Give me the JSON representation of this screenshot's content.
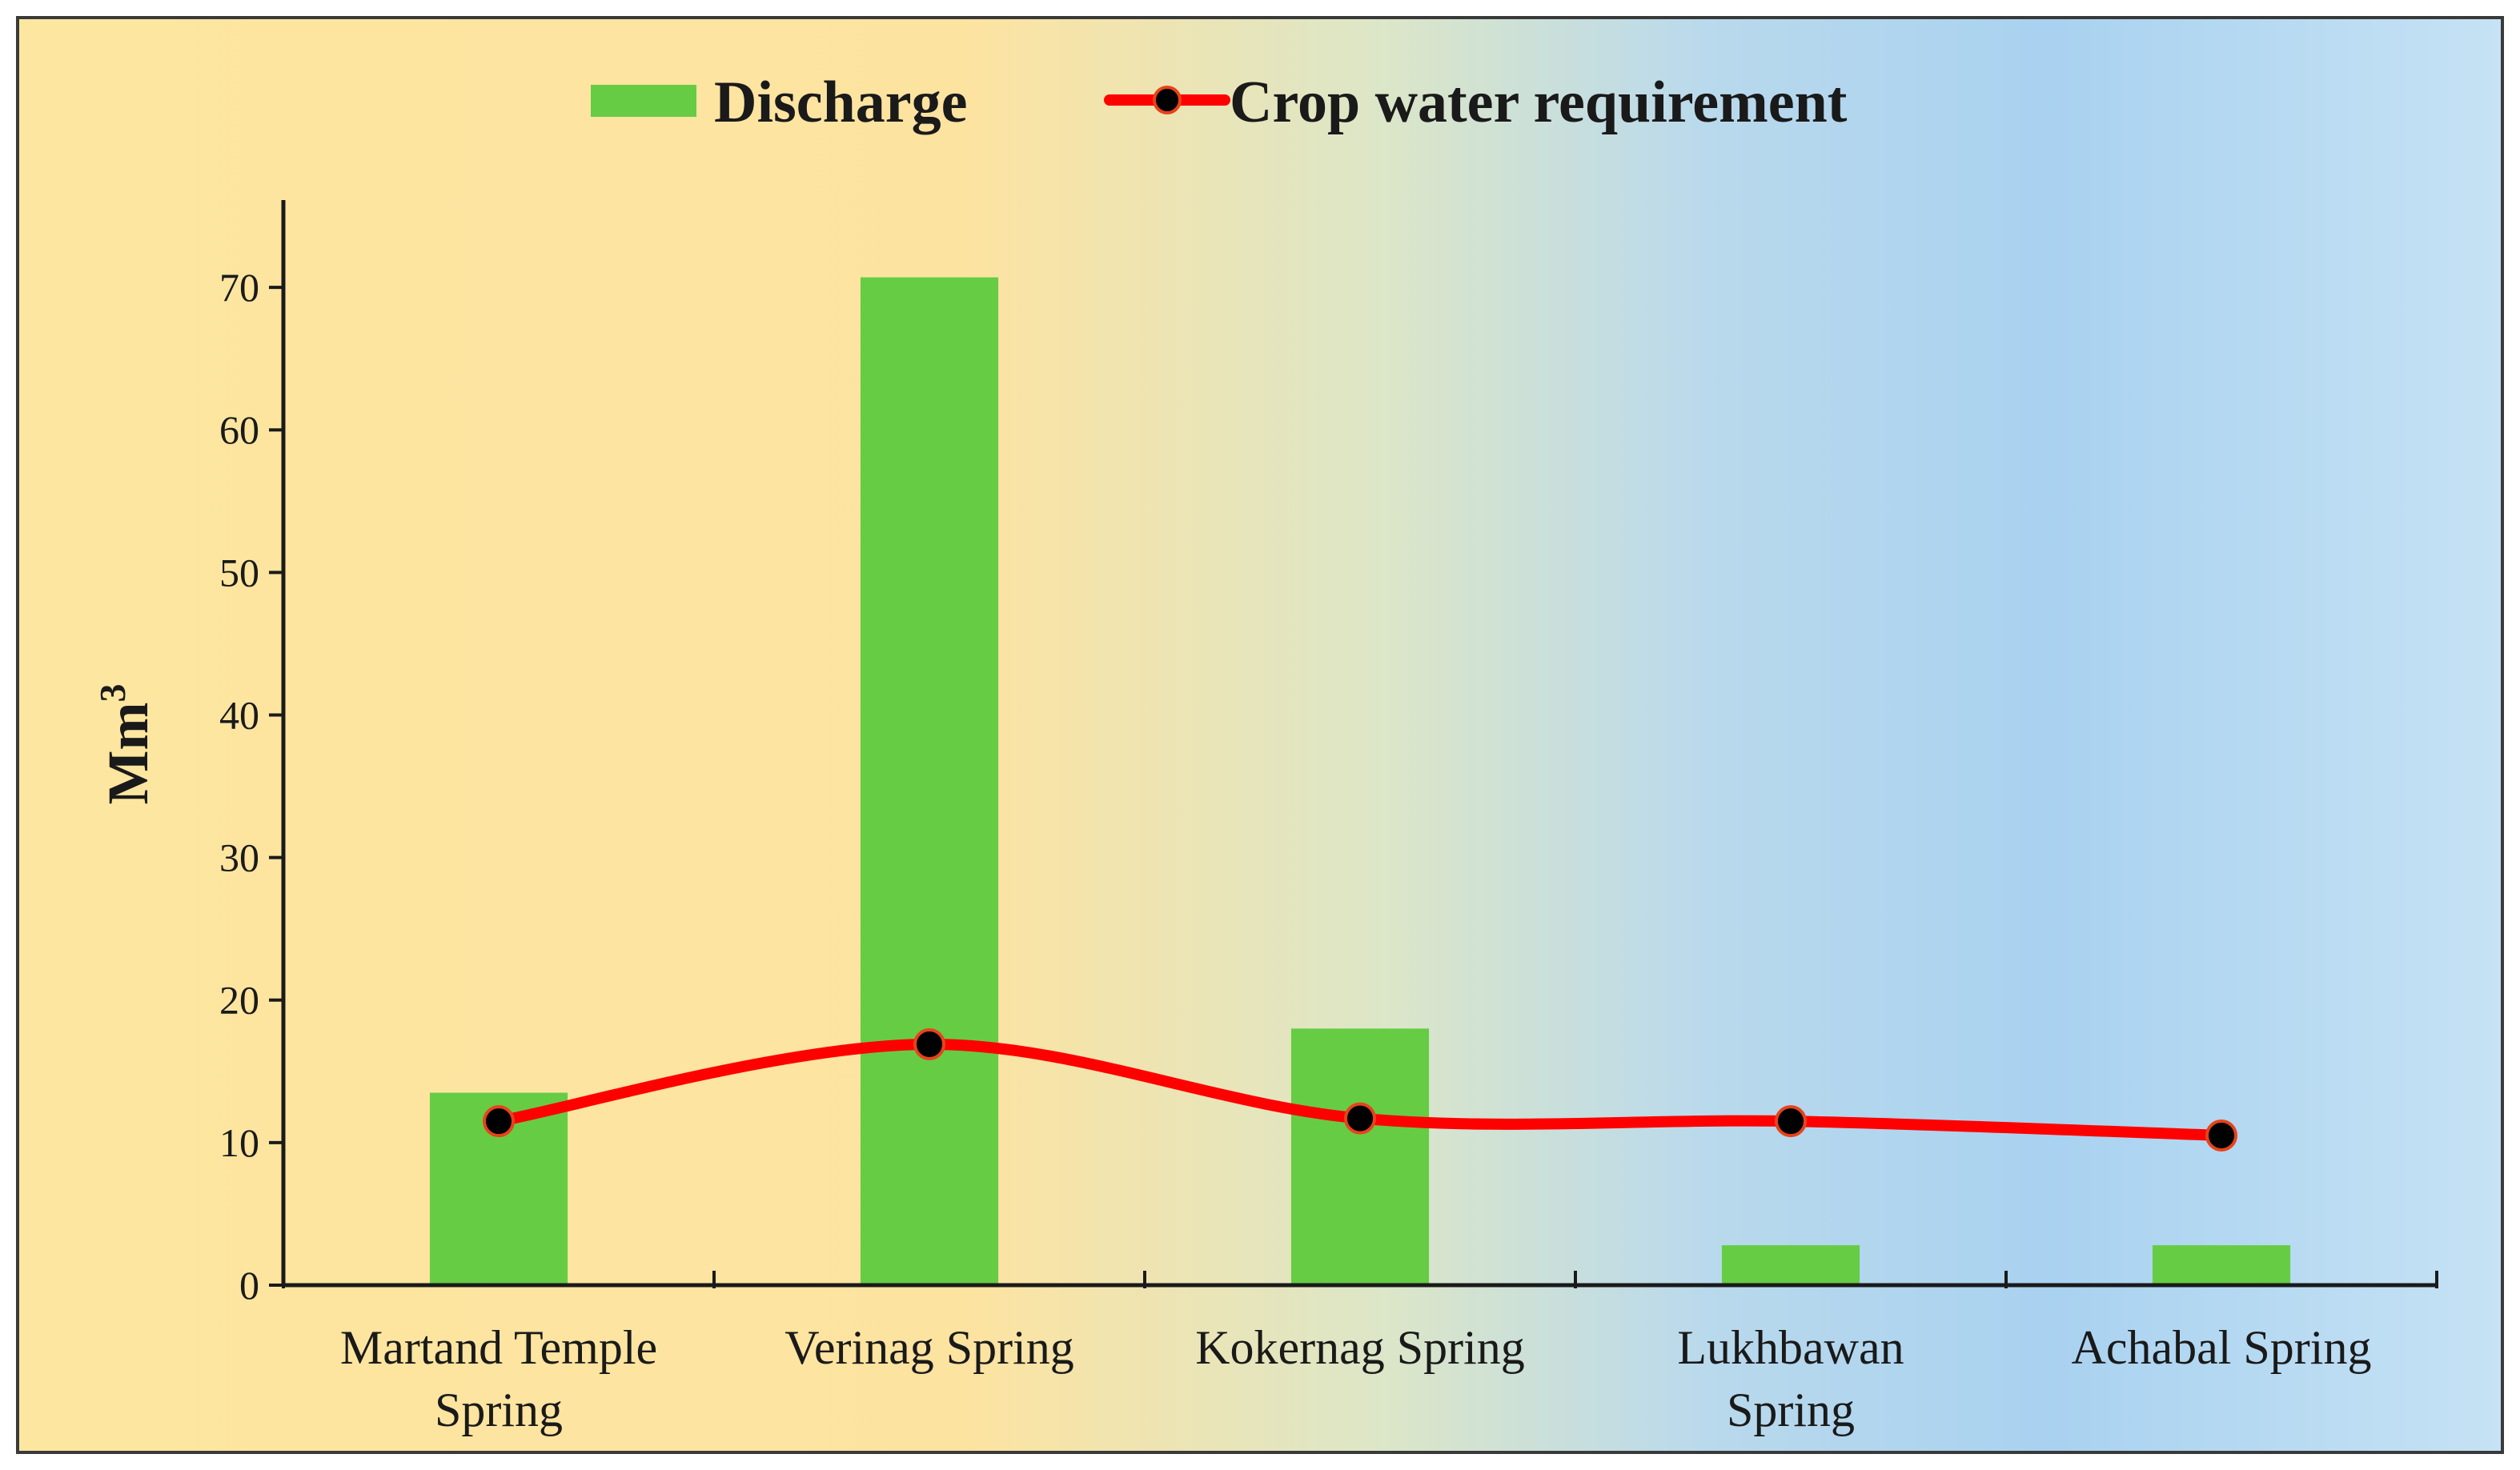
{
  "chart_data": {
    "type": "bar",
    "categories": [
      [
        "Martand Temple",
        "Spring"
      ],
      [
        "Verinag Spring"
      ],
      [
        "Kokernag Spring"
      ],
      [
        "Lukhbawan",
        "Spring"
      ],
      [
        "Achabal Spring"
      ]
    ],
    "series": [
      {
        "name": "Discharge",
        "type": "bar",
        "color": "#66cc44",
        "values": [
          13.5,
          70.7,
          18.0,
          2.8,
          2.8
        ]
      },
      {
        "name": "Crop water requirement",
        "type": "line",
        "color": "#ff0000",
        "marker_color": "#000000",
        "values": [
          11.5,
          16.9,
          11.7,
          11.5,
          10.5
        ]
      }
    ],
    "ylabel": "Mm",
    "ylabel_superscript": "3",
    "ylim": [
      0,
      75
    ],
    "yticks": [
      0,
      10,
      20,
      30,
      40,
      50,
      60,
      70
    ],
    "legend_position": "top-center",
    "grid": false
  }
}
